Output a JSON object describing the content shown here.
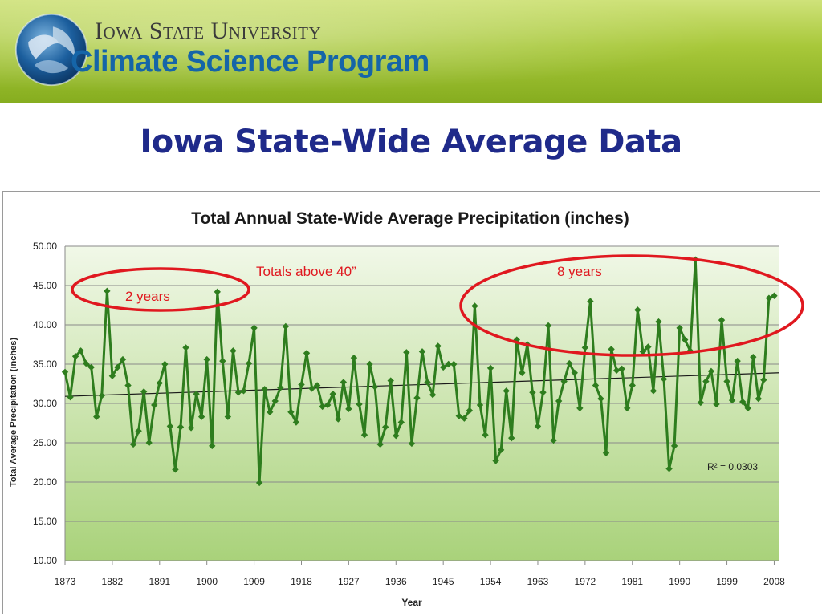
{
  "header": {
    "university": "Iowa State University",
    "program": "Climate Science Program"
  },
  "slide": {
    "title": "Iowa State-Wide Average Data"
  },
  "annotations": {
    "left_ellipse_label": "2 years",
    "right_ellipse_label": "8 years",
    "threshold_label": "Totals above 40”"
  },
  "colors": {
    "series": "#2e7d1e",
    "trendline": "#1a1a1a",
    "ellipse": "#e0181f",
    "annotation_text": "#e0181f",
    "title": "#1f2a8a",
    "program_text": "#1565a8"
  },
  "chart_data": {
    "type": "line",
    "title": "Total Annual State-Wide Average Precipitation (inches)",
    "xlabel": "Year",
    "ylabel": "Total Average Precipitation  (inches)",
    "ylim": [
      10,
      50
    ],
    "yticks": [
      "10.00",
      "15.00",
      "20.00",
      "25.00",
      "30.00",
      "35.00",
      "40.00",
      "45.00",
      "50.00"
    ],
    "xlim": [
      1873,
      2009
    ],
    "xticks": [
      1873,
      1882,
      1891,
      1900,
      1909,
      1918,
      1927,
      1936,
      1945,
      1954,
      1963,
      1972,
      1981,
      1990,
      1999,
      2008
    ],
    "grid": true,
    "legend": "none",
    "r_squared": "R² = 0.0303",
    "trendline": {
      "start_year": 1873,
      "end_year": 2009,
      "start_value": 30.9,
      "end_value": 33.9
    },
    "series": [
      {
        "start_year": 1873,
        "values": [
          34.0,
          30.8,
          36.0,
          36.7,
          35.1,
          34.6,
          28.3,
          31.0,
          44.3,
          33.5,
          34.6,
          35.6,
          32.3,
          24.8,
          26.5,
          31.5,
          25.0,
          29.8,
          32.6,
          35.0,
          27.1,
          21.6,
          27.0,
          37.1,
          26.9,
          31.2,
          28.3,
          35.6,
          24.6,
          44.2,
          35.4,
          28.3,
          36.7,
          31.4,
          31.6,
          35.1,
          39.6,
          19.9,
          31.8,
          28.9,
          30.3,
          32.0,
          39.8,
          28.9,
          27.6,
          32.4,
          36.4,
          31.9,
          32.3,
          29.6,
          29.8,
          31.2,
          28.0,
          32.7,
          29.3,
          35.8,
          29.9,
          26.0,
          35.0,
          32.1,
          24.8,
          27.0,
          32.9,
          25.9,
          27.6,
          36.5,
          24.9,
          30.7,
          36.6,
          32.7,
          31.1,
          37.3,
          34.6,
          35.0,
          35.0,
          28.4,
          28.1,
          29.1,
          42.4,
          29.8,
          26.0,
          34.5,
          22.7,
          24.1,
          31.6,
          25.6,
          38.1,
          33.9,
          37.5,
          31.4,
          27.1,
          31.4,
          39.9,
          25.3,
          30.3,
          32.8,
          35.1,
          33.9,
          29.4,
          37.1,
          43.0,
          32.3,
          30.6,
          23.7,
          36.9,
          34.2,
          34.4,
          29.4,
          32.3,
          41.9,
          36.6,
          37.2,
          31.6,
          40.4,
          33.1,
          21.7,
          24.6,
          39.6,
          38.1,
          36.7,
          48.3,
          30.1,
          32.8,
          34.1,
          29.9,
          40.6,
          32.8,
          30.4,
          35.4,
          30.2,
          29.4,
          35.9,
          30.6,
          33.0,
          43.4,
          43.7
        ]
      }
    ]
  }
}
